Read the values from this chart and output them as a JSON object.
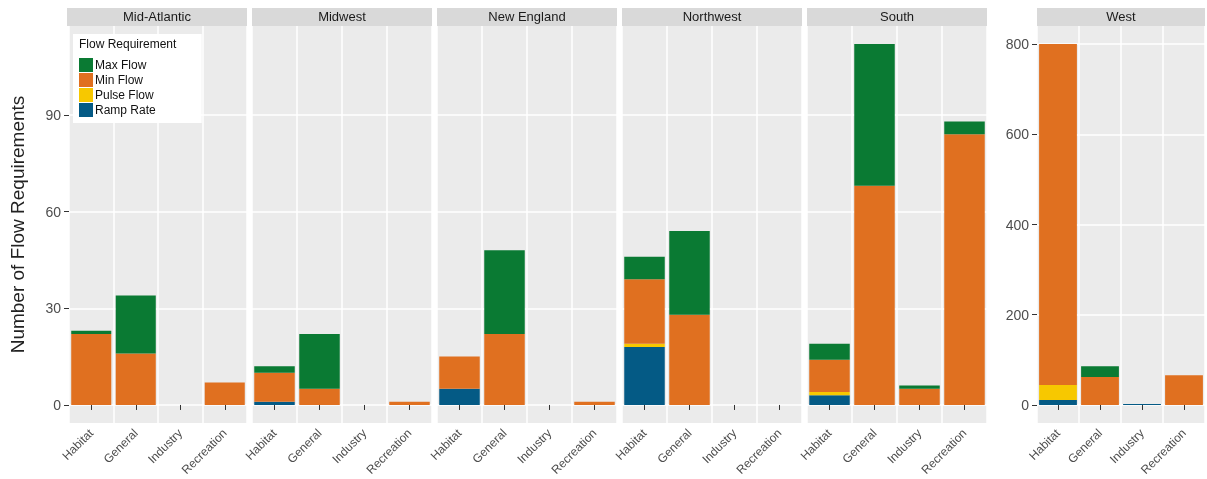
{
  "chart_data": [
    {
      "type": "bar",
      "title": "Mid-Atlantic",
      "ylabel": "Number of Flow Requirements",
      "legend_title": "Flow Requirement",
      "legend": "top left",
      "stacked": true,
      "grid": true,
      "categories": [
        "Habitat",
        "General",
        "Industry",
        "Recreation"
      ],
      "ylim": [
        -5.6,
        117.6
      ],
      "yticks": [
        0,
        30,
        60,
        90
      ],
      "series": [
        {
          "name": "Ramp Rate",
          "color": "#045a85",
          "values": [
            0,
            0,
            0,
            0
          ]
        },
        {
          "name": "Pulse Flow",
          "color": "#f7c800",
          "values": [
            0,
            0,
            0,
            0
          ]
        },
        {
          "name": "Min Flow",
          "color": "#e07020",
          "values": [
            22,
            16,
            0,
            7
          ]
        },
        {
          "name": "Max Flow",
          "color": "#0a7a33",
          "values": [
            1,
            18,
            0,
            0
          ]
        }
      ]
    },
    {
      "type": "bar",
      "title": "Midwest",
      "stacked": true,
      "grid": true,
      "tick_labels": "x",
      "categories": [
        "Habitat",
        "General",
        "Industry",
        "Recreation"
      ],
      "ylim": [
        -5.6,
        117.6
      ],
      "yticks": [
        0,
        30,
        60,
        90
      ],
      "series": [
        {
          "color": "#045a85",
          "values": [
            1,
            0,
            0,
            0
          ]
        },
        {
          "color": "#f7c800",
          "values": [
            0,
            0,
            0,
            0
          ]
        },
        {
          "color": "#e07020",
          "values": [
            9,
            5,
            0,
            1
          ]
        },
        {
          "color": "#0a7a33",
          "values": [
            2,
            17,
            0,
            0
          ]
        }
      ]
    },
    {
      "type": "bar",
      "title": "New England",
      "stacked": true,
      "grid": true,
      "tick_labels": "x",
      "categories": [
        "Habitat",
        "General",
        "Industry",
        "Recreation"
      ],
      "ylim": [
        -5.6,
        117.6
      ],
      "yticks": [
        0,
        30,
        60,
        90
      ],
      "series": [
        {
          "color": "#045a85",
          "values": [
            5,
            0,
            0,
            0
          ]
        },
        {
          "color": "#f7c800",
          "values": [
            0,
            0,
            0,
            0
          ]
        },
        {
          "color": "#e07020",
          "values": [
            10,
            22,
            0,
            1
          ]
        },
        {
          "color": "#0a7a33",
          "values": [
            0,
            26,
            0,
            0
          ]
        }
      ]
    },
    {
      "type": "bar",
      "title": "Northwest",
      "stacked": true,
      "grid": true,
      "tick_labels": "x",
      "categories": [
        "Habitat",
        "General",
        "Industry",
        "Recreation"
      ],
      "ylim": [
        -5.6,
        117.6
      ],
      "yticks": [
        0,
        30,
        60,
        90
      ],
      "series": [
        {
          "color": "#045a85",
          "values": [
            18,
            0,
            0,
            0
          ]
        },
        {
          "color": "#f7c800",
          "values": [
            1,
            0,
            0,
            0
          ]
        },
        {
          "color": "#e07020",
          "values": [
            20,
            28,
            0,
            0
          ]
        },
        {
          "color": "#0a7a33",
          "values": [
            7,
            26,
            0,
            0
          ]
        }
      ]
    },
    {
      "type": "bar",
      "title": "South",
      "stacked": true,
      "grid": true,
      "tick_labels": "x",
      "categories": [
        "Habitat",
        "General",
        "Industry",
        "Recreation"
      ],
      "ylim": [
        -5.6,
        117.6
      ],
      "yticks": [
        0,
        30,
        60,
        90
      ],
      "series": [
        {
          "color": "#045a85",
          "values": [
            3,
            0,
            0,
            0
          ]
        },
        {
          "color": "#f7c800",
          "values": [
            1,
            0,
            0,
            0
          ]
        },
        {
          "color": "#e07020",
          "values": [
            10,
            68,
            5,
            84
          ]
        },
        {
          "color": "#0a7a33",
          "values": [
            5,
            44,
            1,
            4
          ]
        }
      ]
    },
    {
      "type": "bar",
      "title": "West",
      "stacked": true,
      "grid": true,
      "categories": [
        "Habitat",
        "General",
        "Industry",
        "Recreation"
      ],
      "ylim": [
        -40,
        840
      ],
      "yticks": [
        0,
        200,
        400,
        600,
        800
      ],
      "series": [
        {
          "color": "#045a85",
          "values": [
            11,
            0,
            2,
            0
          ]
        },
        {
          "color": "#f7c800",
          "values": [
            33,
            0,
            0,
            0
          ]
        },
        {
          "color": "#e07020",
          "values": [
            756,
            62,
            0,
            66
          ]
        },
        {
          "color": "#0a7a33",
          "values": [
            0,
            24,
            0,
            0
          ]
        }
      ]
    }
  ]
}
